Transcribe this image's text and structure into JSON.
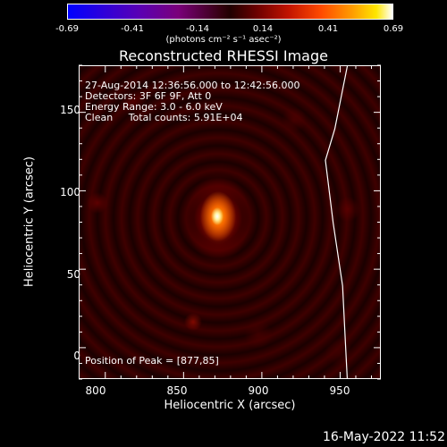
{
  "colorbar": {
    "ticks": [
      "-0.69",
      "-0.41",
      "-0.14",
      "0.14",
      "0.41",
      "0.69"
    ],
    "units_label": "(photons cm⁻² s⁻¹ asec⁻²)"
  },
  "plot": {
    "title": "Reconstructed RHESSI Image",
    "info_lines": [
      "27-Aug-2014 12:36:56.000 to 12:42:56.000",
      "Detectors: 3F 6F 9F, Att 0",
      "Energy Range: 3.0 - 6.0 keV",
      "Clean     Total counts: 5.91E+04"
    ],
    "peak_text": "Position of Peak = [877,85]",
    "xlabel": "Heliocentric X (arcsec)",
    "ylabel": "Heliocentric Y (arcsec)",
    "x_ticks": [
      "800",
      "850",
      "900",
      "950"
    ],
    "y_ticks": [
      "150",
      "100",
      "50",
      "0"
    ],
    "x_range": [
      783,
      976
    ],
    "y_range": [
      -20,
      180
    ],
    "peak": {
      "x": 877,
      "y": 85
    },
    "limb_arc": [
      [
        954,
        180
      ],
      [
        946,
        140
      ],
      [
        940,
        120
      ],
      [
        945,
        80
      ],
      [
        951,
        40
      ],
      [
        953,
        0
      ],
      [
        954,
        -20
      ]
    ]
  },
  "footer": {
    "date": "16-May-2022 11:52"
  },
  "colors": {
    "background": "#000000",
    "axes": "#ffffff",
    "colormap": "red-temperature"
  }
}
